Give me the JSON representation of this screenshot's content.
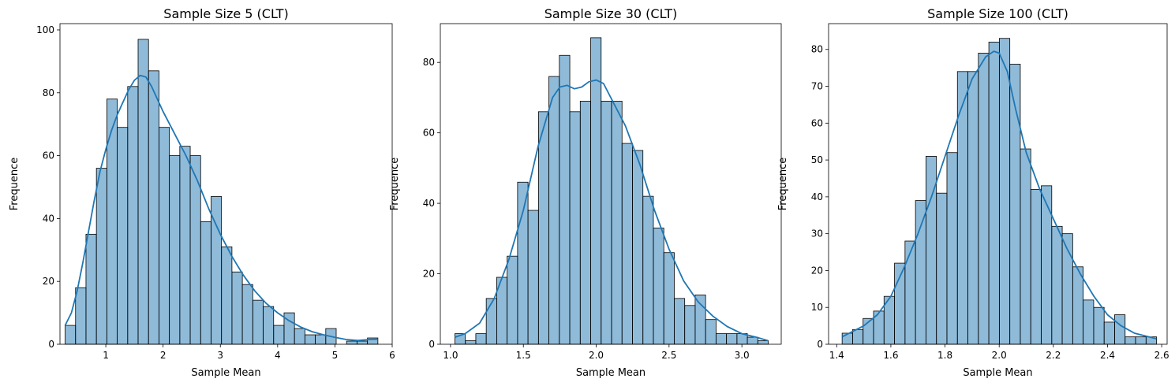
{
  "chart_data": [
    {
      "type": "histogram",
      "title": "Sample Size 5 (CLT)",
      "xlabel": "Sample Mean",
      "ylabel": "Frequence",
      "xlim": [
        0.2,
        6.0
      ],
      "ylim": [
        0,
        102
      ],
      "xticks": [
        1,
        2,
        3,
        4,
        5,
        6
      ],
      "yticks": [
        0,
        20,
        40,
        60,
        80,
        100
      ],
      "bin_start": 0.29,
      "bin_width": 0.182,
      "counts": [
        6,
        18,
        35,
        56,
        78,
        69,
        82,
        97,
        87,
        69,
        60,
        63,
        60,
        39,
        47,
        31,
        23,
        19,
        14,
        12,
        6,
        10,
        5,
        3,
        3,
        5,
        0,
        1,
        1,
        2
      ],
      "kde": [
        [
          0.29,
          6
        ],
        [
          0.4,
          10
        ],
        [
          0.5,
          17
        ],
        [
          0.6,
          26
        ],
        [
          0.7,
          36
        ],
        [
          0.8,
          46
        ],
        [
          0.9,
          55
        ],
        [
          1.0,
          62
        ],
        [
          1.1,
          68
        ],
        [
          1.2,
          73
        ],
        [
          1.3,
          77
        ],
        [
          1.4,
          81
        ],
        [
          1.5,
          84
        ],
        [
          1.6,
          85.5
        ],
        [
          1.7,
          85
        ],
        [
          1.8,
          82
        ],
        [
          1.9,
          78
        ],
        [
          2.0,
          74
        ],
        [
          2.2,
          67
        ],
        [
          2.4,
          60
        ],
        [
          2.6,
          52
        ],
        [
          2.8,
          43
        ],
        [
          3.0,
          35
        ],
        [
          3.2,
          28
        ],
        [
          3.4,
          22
        ],
        [
          3.6,
          17
        ],
        [
          3.8,
          13
        ],
        [
          4.0,
          10
        ],
        [
          4.2,
          7.5
        ],
        [
          4.4,
          5.5
        ],
        [
          4.6,
          4
        ],
        [
          4.8,
          3
        ],
        [
          5.0,
          2.2
        ],
        [
          5.2,
          1.5
        ],
        [
          5.4,
          1.2
        ],
        [
          5.6,
          1.5
        ],
        [
          5.75,
          1.6
        ]
      ],
      "grid": false,
      "color": "#1f77b4"
    },
    {
      "type": "histogram",
      "title": "Sample Size 30 (CLT)",
      "xlabel": "Sample Mean",
      "ylabel": "Frequence",
      "xlim": [
        0.93,
        3.27
      ],
      "ylim": [
        0,
        91
      ],
      "xticks": [
        1.0,
        1.5,
        2.0,
        2.5,
        3.0
      ],
      "yticks": [
        0,
        20,
        40,
        60,
        80
      ],
      "bin_start": 1.03,
      "bin_width": 0.0717,
      "counts": [
        3,
        1,
        3,
        13,
        19,
        25,
        46,
        38,
        66,
        76,
        82,
        66,
        69,
        87,
        69,
        69,
        57,
        55,
        42,
        33,
        26,
        13,
        11,
        14,
        7,
        3,
        3,
        3,
        2,
        1
      ],
      "kde": [
        [
          1.03,
          2
        ],
        [
          1.1,
          3
        ],
        [
          1.2,
          6
        ],
        [
          1.3,
          13
        ],
        [
          1.4,
          24
        ],
        [
          1.5,
          38
        ],
        [
          1.6,
          56
        ],
        [
          1.7,
          70
        ],
        [
          1.75,
          73
        ],
        [
          1.8,
          73.5
        ],
        [
          1.85,
          72.5
        ],
        [
          1.9,
          73
        ],
        [
          1.95,
          74.5
        ],
        [
          2.0,
          75
        ],
        [
          2.05,
          74
        ],
        [
          2.1,
          70
        ],
        [
          2.2,
          62
        ],
        [
          2.3,
          51
        ],
        [
          2.4,
          38
        ],
        [
          2.5,
          27
        ],
        [
          2.6,
          18
        ],
        [
          2.7,
          12
        ],
        [
          2.8,
          8
        ],
        [
          2.9,
          5
        ],
        [
          3.0,
          3
        ],
        [
          3.1,
          2
        ],
        [
          3.18,
          1
        ]
      ],
      "grid": false,
      "color": "#1f77b4"
    },
    {
      "type": "histogram",
      "title": "Sample Size 100 (CLT)",
      "xlabel": "Sample Mean",
      "ylabel": "Frequence",
      "xlim": [
        1.37,
        2.62
      ],
      "ylim": [
        0,
        87
      ],
      "xticks": [
        1.4,
        1.6,
        1.8,
        2.0,
        2.2,
        2.4,
        2.6
      ],
      "yticks": [
        0,
        10,
        20,
        30,
        40,
        50,
        60,
        70,
        80
      ],
      "bin_start": 1.42,
      "bin_width": 0.0387,
      "counts": [
        3,
        4,
        7,
        9,
        13,
        22,
        28,
        39,
        51,
        41,
        52,
        74,
        74,
        79,
        82,
        83,
        76,
        53,
        42,
        43,
        32,
        30,
        21,
        12,
        10,
        6,
        8,
        2,
        2,
        2
      ],
      "kde": [
        [
          1.42,
          2
        ],
        [
          1.5,
          5
        ],
        [
          1.55,
          8
        ],
        [
          1.6,
          13
        ],
        [
          1.65,
          21
        ],
        [
          1.7,
          30
        ],
        [
          1.75,
          40
        ],
        [
          1.8,
          51
        ],
        [
          1.85,
          62
        ],
        [
          1.9,
          72
        ],
        [
          1.95,
          78
        ],
        [
          1.98,
          79.5
        ],
        [
          2.0,
          79
        ],
        [
          2.03,
          74
        ],
        [
          2.06,
          64
        ],
        [
          2.1,
          52
        ],
        [
          2.15,
          42
        ],
        [
          2.2,
          34
        ],
        [
          2.25,
          26
        ],
        [
          2.3,
          19
        ],
        [
          2.35,
          13
        ],
        [
          2.4,
          8
        ],
        [
          2.45,
          5
        ],
        [
          2.5,
          3
        ],
        [
          2.58,
          1.5
        ]
      ],
      "grid": false,
      "color": "#1f77b4"
    }
  ]
}
